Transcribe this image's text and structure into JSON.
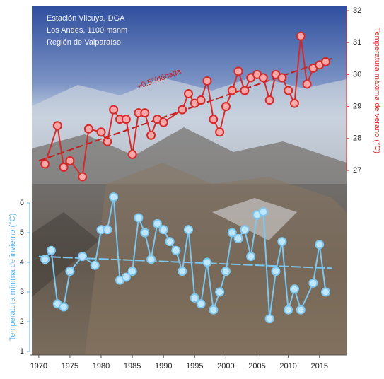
{
  "chart_data": {
    "type": "line",
    "title": [
      "Estación Vilcuya, DGA",
      "Los Andes, 1100 msnm",
      "Región de Valparaíso"
    ],
    "annotation": "+0.5°/década",
    "ylabel": "Temperatura mínima de invierno (°C)",
    "y2label": "Temperatura máxima de verano (°C)",
    "xlim": [
      1969,
      2019
    ],
    "xticks": [
      1970,
      1975,
      1980,
      1985,
      1990,
      1995,
      2000,
      2005,
      2010,
      2015
    ],
    "ylim": [
      1,
      6
    ],
    "yticks": [
      1,
      2,
      3,
      4,
      5,
      6
    ],
    "y2lim": [
      27,
      32
    ],
    "y2ticks": [
      27,
      28,
      29,
      30,
      31,
      32
    ],
    "series": [
      {
        "axis": "y2",
        "color": "#d42a2a",
        "x": [
          1971,
          1973,
          1974,
          1975,
          1977,
          1978,
          1980,
          1981,
          1982,
          1983,
          1984,
          1985,
          1986,
          1987,
          1988,
          1989,
          1990,
          1993,
          1994,
          1995,
          1996,
          1997,
          1998,
          1999,
          2000,
          2001,
          2002,
          2003,
          2004,
          2005,
          2006,
          2007,
          2008,
          2009,
          2010,
          2011,
          2012,
          2013,
          2014,
          2015,
          2016
        ],
        "values": [
          27.2,
          28.4,
          27.1,
          27.3,
          26.8,
          28.3,
          28.2,
          27.9,
          28.9,
          28.6,
          28.6,
          27.5,
          28.8,
          28.8,
          28.1,
          28.6,
          28.5,
          28.9,
          29.4,
          29.1,
          29.2,
          29.8,
          28.6,
          28.2,
          29.0,
          29.5,
          30.1,
          29.5,
          29.9,
          30.0,
          29.9,
          29.2,
          30.0,
          29.9,
          29.5,
          29.1,
          31.2,
          29.7,
          30.2,
          30.3,
          30.4
        ]
      },
      {
        "axis": "y",
        "color": "#7cc8f0",
        "x": [
          1971,
          1972,
          1973,
          1974,
          1975,
          1977,
          1979,
          1980,
          1981,
          1982,
          1983,
          1984,
          1985,
          1986,
          1987,
          1988,
          1989,
          1990,
          1991,
          1992,
          1993,
          1994,
          1995,
          1996,
          1997,
          1998,
          1999,
          2000,
          2001,
          2002,
          2003,
          2004,
          2005,
          2006,
          2007,
          2008,
          2009,
          2010,
          2011,
          2012,
          2014,
          2015,
          2016
        ],
        "values": [
          4.1,
          4.4,
          2.6,
          2.5,
          3.7,
          4.2,
          3.9,
          5.1,
          5.1,
          6.2,
          3.4,
          3.5,
          3.7,
          5.5,
          5.0,
          4.1,
          5.3,
          5.1,
          4.7,
          4.4,
          3.7,
          5.1,
          2.8,
          2.6,
          4.0,
          2.4,
          3.0,
          3.7,
          5.0,
          4.8,
          5.1,
          4.2,
          5.6,
          5.7,
          2.1,
          3.7,
          4.7,
          2.4,
          3.1,
          2.4,
          3.3,
          4.6,
          3.0
        ]
      }
    ],
    "trends": [
      {
        "axis": "y2",
        "color": "#c41e1e",
        "x": [
          1970,
          2017
        ],
        "values": [
          27.3,
          30.5
        ]
      },
      {
        "axis": "y",
        "color": "#7cc8f0",
        "x": [
          1970,
          2017
        ],
        "values": [
          4.2,
          3.8
        ]
      }
    ]
  }
}
